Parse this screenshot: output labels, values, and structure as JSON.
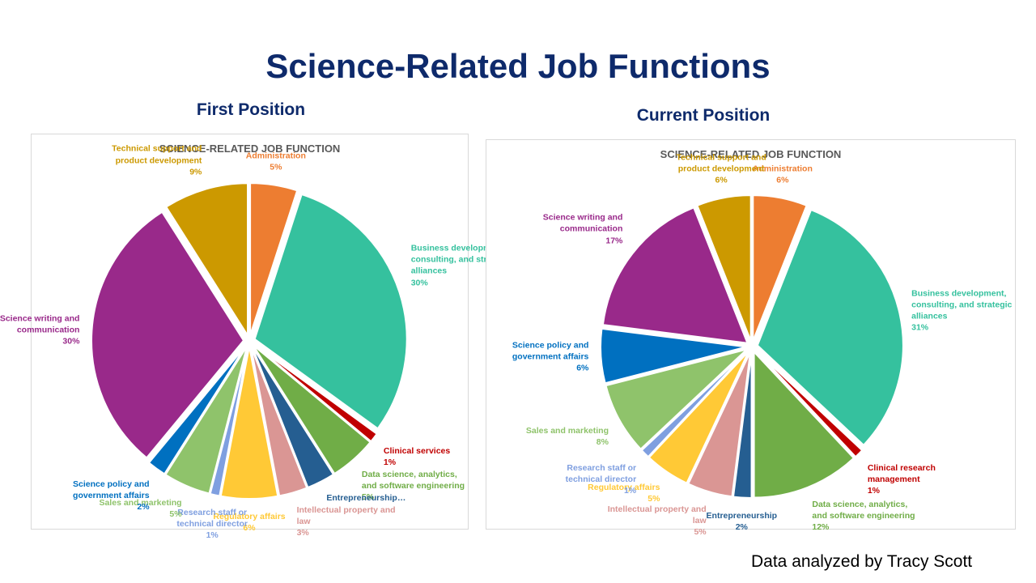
{
  "slide": {
    "title": "Science-Related Job Functions",
    "credit": "Data analyzed by Tracy Scott"
  },
  "chart_data": [
    {
      "type": "pie",
      "heading": "First Position",
      "title": "SCIENCE-RELATED JOB FUNCTION",
      "categories": [
        "Administration",
        "Business development, consulting, and strategic alliances",
        "Clinical services",
        "Data science, analytics, and software engineering",
        "Entrepreneurship…",
        "Intellectual property and law",
        "Regulatory affairs",
        "Research staff or technical director",
        "Sales and marketing",
        "Science policy and government affairs",
        "Science writing and communication",
        "Technical support and product development"
      ],
      "values": [
        5,
        30,
        1,
        5,
        3,
        3,
        6,
        1,
        5,
        2,
        30,
        9
      ],
      "value_labels": [
        "5%",
        "30%",
        "1%",
        "5%",
        null,
        "3%",
        "6%",
        "1%",
        "5%",
        "2%",
        "30%",
        "9%"
      ],
      "colors": [
        "#ed7d31",
        "#35c19e",
        "#c00000",
        "#70ad47",
        "#255e91",
        "#da9694",
        "#ffc936",
        "#7f9fe0",
        "#8fc36b",
        "#0070c0",
        "#99298a",
        "#cc9900"
      ]
    },
    {
      "type": "pie",
      "heading": "Current Position",
      "title": "SCIENCE-RELATED JOB FUNCTION",
      "categories": [
        "Administration",
        "Business development, consulting, and strategic alliances",
        "Clinical research management",
        "Data science, analytics, and software engineering",
        "Entrepreneurship",
        "Intellectual property and law",
        "Regulatory affairs",
        "Research staff or technical director",
        "Sales and marketing",
        "Science policy and government affairs",
        "Science writing and communication",
        "Technical support and product development"
      ],
      "values": [
        6,
        31,
        1,
        12,
        2,
        5,
        5,
        1,
        8,
        6,
        17,
        6
      ],
      "value_labels": [
        "6%",
        "31%",
        "1%",
        "12%",
        "2%",
        "5%",
        "5%",
        "1%",
        "8%",
        "6%",
        "17%",
        "6%"
      ],
      "colors": [
        "#ed7d31",
        "#35c19e",
        "#c00000",
        "#70ad47",
        "#255e91",
        "#da9694",
        "#ffc936",
        "#7f9fe0",
        "#8fc36b",
        "#0070c0",
        "#99298a",
        "#cc9900"
      ]
    }
  ]
}
